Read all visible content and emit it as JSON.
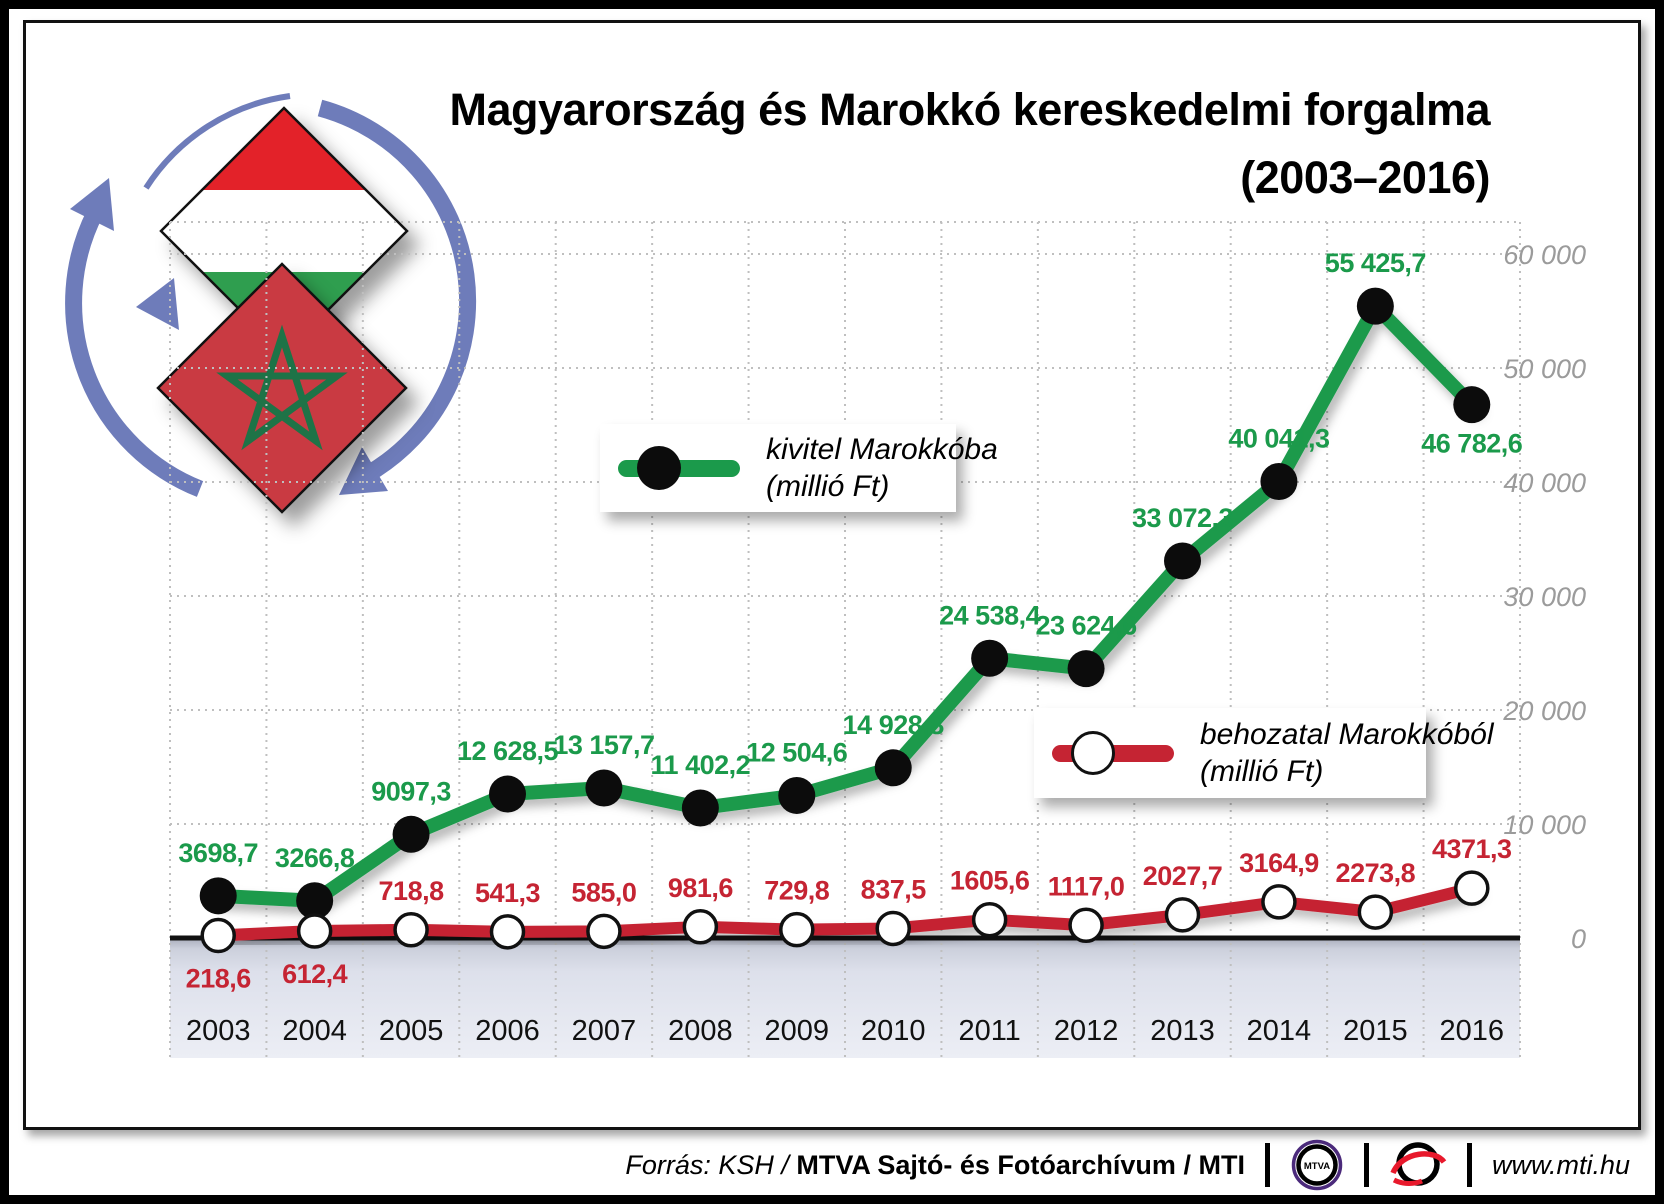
{
  "title": {
    "line1": "Magyarország és Marokkó kereskedelmi forgalma",
    "line2": "(2003–2016)"
  },
  "legend_export": {
    "line1": "kivitel Marokkóba",
    "line2": "(millió Ft)"
  },
  "legend_import": {
    "line1": "behozatal Marokkóból",
    "line2": "(millió Ft)"
  },
  "chart_data": {
    "type": "line",
    "categories": [
      "2003",
      "2004",
      "2005",
      "2006",
      "2007",
      "2008",
      "2009",
      "2010",
      "2011",
      "2012",
      "2013",
      "2014",
      "2015",
      "2016"
    ],
    "series": [
      {
        "name": "kivitel Marokkóba (millió Ft)",
        "color": "#1b9a4b",
        "marker": "black-dot",
        "values": [
          3698.7,
          3266.8,
          9097.3,
          12628.5,
          13157.7,
          11402.2,
          12504.6,
          14928.8,
          24538.4,
          23624.6,
          33072.3,
          40041.3,
          55425.7,
          46782.6
        ],
        "labels": [
          "3698,7",
          "3266,8",
          "9097,3",
          "12 628,5",
          "13 157,7",
          "11 402,2",
          "12 504,6",
          "14 928,8",
          "24 538,4",
          "23 624,6",
          "33 072,3",
          "40 041,3",
          "55 425,7",
          "46 782,6"
        ],
        "label_pos": [
          "above",
          "above",
          "above",
          "above",
          "above",
          "above",
          "above",
          "above",
          "above",
          "above",
          "above",
          "above",
          "above",
          "below"
        ]
      },
      {
        "name": "behozatal Marokkóból (millió Ft)",
        "color": "#c52433",
        "marker": "white-dot",
        "values": [
          218.6,
          612.4,
          718.8,
          541.3,
          585.0,
          981.6,
          729.8,
          837.5,
          1605.6,
          1117.0,
          2027.7,
          3164.9,
          2273.8,
          4371.3
        ],
        "labels": [
          "218,6",
          "612,4",
          "718,8",
          "541,3",
          "585,0",
          "981,6",
          "729,8",
          "837,5",
          "1605,6",
          "1117,0",
          "2027,7",
          "3164,9",
          "2273,8",
          "4371,3"
        ],
        "label_pos": [
          "below",
          "below",
          "above",
          "above",
          "above",
          "above",
          "above",
          "above",
          "above",
          "above",
          "above",
          "above",
          "above",
          "above"
        ]
      }
    ],
    "y_axis": {
      "min": 0,
      "max": 60000,
      "grid": "dotted",
      "position": "right",
      "ticks": [
        {
          "label": "60 000",
          "value": 60000
        },
        {
          "label": "50 000",
          "value": 50000
        },
        {
          "label": "40 000",
          "value": 40000
        },
        {
          "label": "30 000",
          "value": 30000
        },
        {
          "label": "20 000",
          "value": 20000
        },
        {
          "label": "10 000",
          "value": 10000
        },
        {
          "label": "0",
          "value": 0
        }
      ]
    },
    "legend_position": "inside-plot"
  },
  "footer": {
    "source_prefix": "Forrás: KSH /",
    "source_bold": "MTVA Sajtó- és Fotóarchívum",
    "source_suffix": "/ MTI",
    "mtva_logo_text": "MTVA",
    "website": "www.mti.hu"
  },
  "colors": {
    "export_green": "#1b9a4b",
    "import_red": "#c52433",
    "axis_black": "#111111",
    "grid_gray": "#bfbfbf",
    "tick_gray": "#9b9b9b",
    "band_blue": "#dfe2ee",
    "arrow_blue": "#6e7cba",
    "hungary_red": "#e32229",
    "hungary_green": "#2f9e4f",
    "morocco_red": "#c93a42",
    "morocco_star_green": "#1e7347",
    "mtva_purple": "#4b2a7b",
    "mti_red": "#e8192c"
  }
}
